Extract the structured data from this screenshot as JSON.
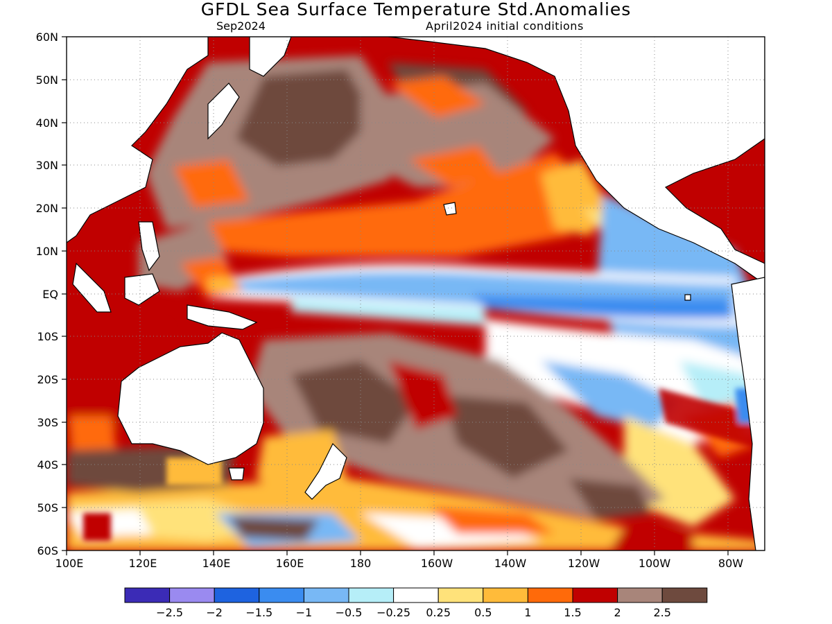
{
  "header": {
    "title": "GFDL Sea Surface Temperature Std.Anomalies",
    "valid_month": "Sep2024",
    "initial_conditions": "April2024 initial conditions"
  },
  "map": {
    "lat_ticks": [
      "60N",
      "50N",
      "40N",
      "30N",
      "20N",
      "10N",
      "EQ",
      "10S",
      "20S",
      "30S",
      "40S",
      "50S",
      "60S"
    ],
    "lon_ticks": [
      "100E",
      "120E",
      "140E",
      "160E",
      "180",
      "160W",
      "140W",
      "120W",
      "100W",
      "80W"
    ],
    "extent": {
      "lon": [
        100,
        290
      ],
      "lat": [
        -60,
        60
      ]
    },
    "grid": "dotted"
  },
  "colorbar": {
    "colors": [
      "#3b2bb6",
      "#9a8af0",
      "#1e63e0",
      "#3a8cf0",
      "#78b8f5",
      "#b6eef8",
      "#ffffff",
      "#ffe27a",
      "#ffbb3a",
      "#ff6a0a",
      "#c00000",
      "#a8857a",
      "#6e4a3e"
    ],
    "labels": [
      "−2.5",
      "−2",
      "−1.5",
      "−1",
      "−0.5",
      "−0.25",
      "0.25",
      "0.5",
      "1",
      "1.5",
      "2",
      "2.5"
    ]
  }
}
